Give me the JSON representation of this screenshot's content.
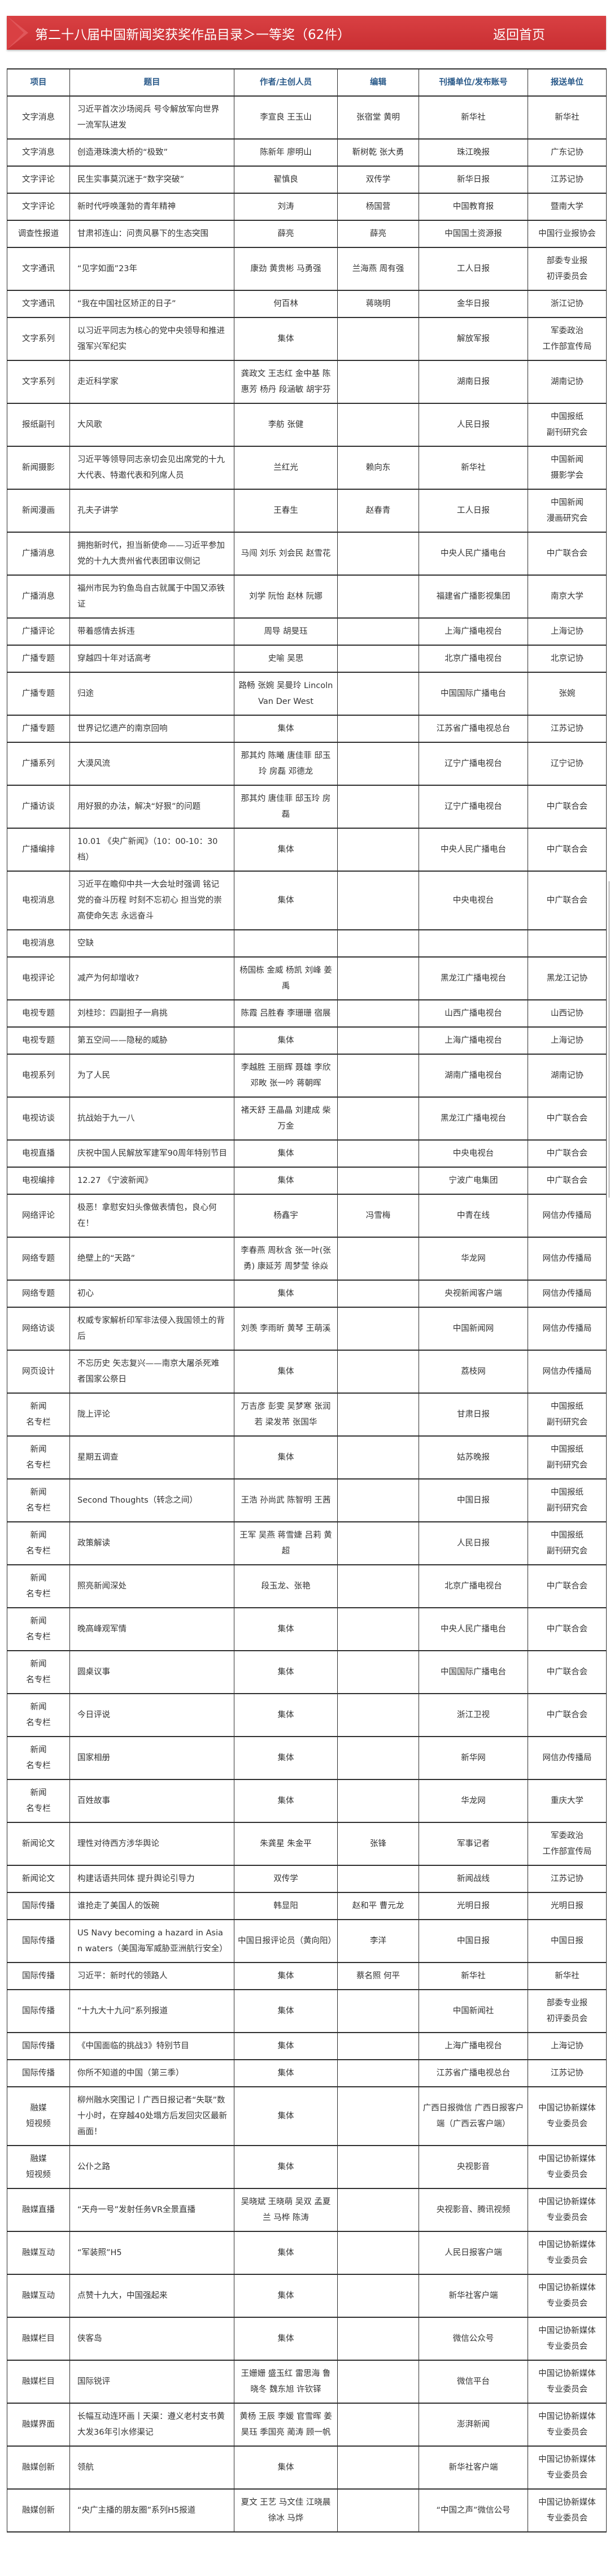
{
  "header": {
    "title": "第二十八届中国新闻奖获奖作品目录＞一等奖（62件）",
    "home_link": "返回首页",
    "accent": "#d33a3c"
  },
  "table": {
    "columns": [
      "项目",
      "题目",
      "作者/主创人员",
      "编辑",
      "刊播单位/发布账号",
      "报送单位"
    ],
    "rows": [
      [
        "文字消息",
        "习近平首次沙场阅兵 号令解放军向世界一流军队进发",
        "李宣良 王玉山",
        "张宿堂 黄明",
        "新华社",
        "新华社"
      ],
      [
        "文字消息",
        "创造港珠澳大桥的“极致”",
        "陈新年 廖明山",
        "靳树乾 张大勇",
        "珠江晚报",
        "广东记协"
      ],
      [
        "文字评论",
        "民生实事莫沉迷于“数字突破”",
        "翟慎良",
        "双传学",
        "新华日报",
        "江苏记协"
      ],
      [
        "文字评论",
        "新时代呼唤蓬勃的青年精神",
        "刘涛",
        "杨国营",
        "中国教育报",
        "暨南大学"
      ],
      [
        "调查性报道",
        "甘肃祁连山：问责风暴下的生态突围",
        "薛亮",
        "薛亮",
        "中国国土资源报",
        "中国行业报协会"
      ],
      [
        "文字通讯",
        "“见字如面”23年",
        "康劲 黄贵彬 马勇强",
        "兰海燕 周有强",
        "工人日报",
        "部委专业报\n初评委员会"
      ],
      [
        "文字通讯",
        "“我在中国社区矫正的日子”",
        "何百林",
        "蒋晓明",
        "金华日报",
        "浙江记协"
      ],
      [
        "文字系列",
        "以习近平同志为核心的党中央领导和推进强军兴军纪实",
        "集体",
        "",
        "解放军报",
        "军委政治\n工作部宣传局"
      ],
      [
        "文字系列",
        "走近科学家",
        "龚政文 王志红 金中基 陈惠芳 杨丹 段涵敏 胡宇芬",
        "",
        "湖南日报",
        "湖南记协"
      ],
      [
        "报纸副刊",
        "大风歌",
        "李舫 张健",
        "",
        "人民日报",
        "中国报纸\n副刊研究会"
      ],
      [
        "新闻摄影",
        "习近平等领导同志亲切会见出席党的十九大代表、特邀代表和列席人员",
        "兰红光",
        "赖向东",
        "新华社",
        "中国新闻\n摄影学会"
      ],
      [
        "新闻漫画",
        "孔夫子讲学",
        "王春生",
        "赵春青",
        "工人日报",
        "中国新闻\n漫画研究会"
      ],
      [
        "广播消息",
        "拥抱新时代，担当新使命——习近平参加党的十九大贵州省代表团审议侧记",
        "马闯 刘乐 刘会民 赵雪花",
        "",
        "中央人民广播电台",
        "中广联合会"
      ],
      [
        "广播消息",
        "福州市民为钓鱼岛自古就属于中国又添铁证",
        "刘学 阮怡 赵林 阮娜",
        "",
        "福建省广播影视集团",
        "南京大学"
      ],
      [
        "广播评论",
        "带着感情去拆违",
        "周导 胡旻珏",
        "",
        "上海广播电视台",
        "上海记协"
      ],
      [
        "广播专题",
        "穿越四十年对话高考",
        "史喻 吴思",
        "",
        "北京广播电视台",
        "北京记协"
      ],
      [
        "广播专题",
        "归途",
        "路畅 张婉 吴曼玲 Lincoln Van Der West",
        "",
        "中国国际广播电台",
        "张婉"
      ],
      [
        "广播专题",
        "世界记忆遗产的南京回响",
        "集体",
        "",
        "江苏省广播电视总台",
        "江苏记协"
      ],
      [
        "广播系列",
        "大漠风流",
        "那其灼 陈曦 唐佳菲 邸玉玲 房磊 邓德龙",
        "",
        "辽宁广播电视台",
        "辽宁记协"
      ],
      [
        "广播访谈",
        "用好狠的办法，解决“好狠”的问题",
        "那其灼 唐佳菲 邸玉玲 房磊",
        "",
        "辽宁广播电视台",
        "中广联合会"
      ],
      [
        "广播编排",
        "10.01 《央广新闻》（10：00-10：30档）",
        "集体",
        "",
        "中央人民广播电台",
        "中广联合会"
      ],
      [
        "电视消息",
        "习近平在瞻仰中共一大会址时强调 铭记党的奋斗历程 时刻不忘初心 担当党的崇高使命矢志 永远奋斗",
        "集体",
        "",
        "中央电视台",
        "中广联合会"
      ],
      [
        "电视消息",
        "空缺",
        "",
        "",
        "",
        ""
      ],
      [
        "电视评论",
        "减产为何却增收?",
        "杨国栋 金威 杨凯 刘峰 姜禹",
        "",
        "黑龙江广播电视台",
        "黑龙江记协"
      ],
      [
        "电视专题",
        "刘桂珍：四副担子一肩挑",
        "陈霞 吕胜春 李珊珊 宿展",
        "",
        "山西广播电视台",
        "山西记协"
      ],
      [
        "电视专题",
        "第五空间——隐秘的威胁",
        "集体",
        "",
        "上海广播电视台",
        "上海记协"
      ],
      [
        "电视系列",
        "为了人民",
        "李越胜 王丽辉 聂雄 李欣 邓畋 张一吟 蒋朝晖",
        "",
        "湖南广播电视台",
        "湖南记协"
      ],
      [
        "电视访谈",
        "抗战始于九一八",
        "褚天舒 王晶晶 刘建成 柴万金",
        "",
        "黑龙江广播电视台",
        "中广联合会"
      ],
      [
        "电视直播",
        "庆祝中国人民解放军建军90周年特别节目",
        "集体",
        "",
        "中央电视台",
        "中广联合会"
      ],
      [
        "电视编排",
        "12.27 《宁波新闻》",
        "集体",
        "",
        "宁波广电集团",
        "中广联合会"
      ],
      [
        "网络评论",
        "极恶！拿慰安妇头像做表情包，良心何在！",
        "杨鑫宇",
        "冯雪梅",
        "中青在线",
        "网信办传播局"
      ],
      [
        "网络专题",
        "绝壁上的“天路”",
        "李春燕 周秋含 张一叶(张勇) 康延芳 周梦莹 徐焱",
        "",
        "华龙网",
        "网信办传播局"
      ],
      [
        "网络专题",
        "初心",
        "集体",
        "",
        "央视新闻客户端",
        "网信办传播局"
      ],
      [
        "网络访谈",
        "权威专家解析印军非法侵入我国领土的背后",
        "刘羡 李雨昕 黄琴 王萌溪",
        "",
        "中国新闻网",
        "网信办传播局"
      ],
      [
        "网页设计",
        "不忘历史 矢志复兴——南京大屠杀死难者国家公祭日",
        "集体",
        "",
        "荔枝网",
        "网信办传播局"
      ],
      [
        "新闻\n名专栏",
        "陇上评论",
        "万吉彦 彭雯 吴梦寒 张润若 梁发芾 张国华",
        "",
        "甘肃日报",
        "中国报纸\n副刊研究会"
      ],
      [
        "新闻\n名专栏",
        "星期五调查",
        "集体",
        "",
        "姑苏晚报",
        "中国报纸\n副刊研究会"
      ],
      [
        "新闻\n名专栏",
        "Second Thoughts（转念之间）",
        "王浩 孙尚武 陈智明 王茜",
        "",
        "中国日报",
        "中国报纸\n副刊研究会"
      ],
      [
        "新闻\n名专栏",
        "政策解读",
        "王军 吴燕 蒋雪婕 吕莉 黄超",
        "",
        "人民日报",
        "中国报纸\n副刊研究会"
      ],
      [
        "新闻\n名专栏",
        "照亮新闻深处",
        "段玉龙、张艳",
        "",
        "北京广播电视台",
        "中广联合会"
      ],
      [
        "新闻\n名专栏",
        "晚高峰观军情",
        "集体",
        "",
        "中央人民广播电台",
        "中广联合会"
      ],
      [
        "新闻\n名专栏",
        "圆桌议事",
        "集体",
        "",
        "中国国际广播电台",
        "中广联合会"
      ],
      [
        "新闻\n名专栏",
        "今日评说",
        "集体",
        "",
        "浙江卫视",
        "中广联合会"
      ],
      [
        "新闻\n名专栏",
        "国家相册",
        "集体",
        "",
        "新华网",
        "网信办传播局"
      ],
      [
        "新闻\n名专栏",
        "百姓故事",
        "集体",
        "",
        "华龙网",
        "重庆大学"
      ],
      [
        "新闻论文",
        "理性对待西方涉华舆论",
        "朱龚星 朱金平",
        "张锋",
        "军事记者",
        "军委政治\n工作部宣传局"
      ],
      [
        "新闻论文",
        "构建话语共同体 提升舆论引导力",
        "双传学",
        "",
        "新闻战线",
        "江苏记协"
      ],
      [
        "国际传播",
        "谁抢走了美国人的饭碗",
        "韩显阳",
        "赵和平 曹元龙",
        "光明日报",
        "光明日报"
      ],
      [
        "国际传播",
        "US Navy becoming a hazard in Asian waters（美国海军威胁亚洲航行安全）",
        "中国日报评论员（黄向阳）",
        "李洋",
        "中国日报",
        "中国日报"
      ],
      [
        "国际传播",
        "习近平：新时代的领路人",
        "集体",
        "蔡名照 何平",
        "新华社",
        "新华社"
      ],
      [
        "国际传播",
        "“十九大十九问”系列报道",
        "集体",
        "",
        "中国新闻社",
        "部委专业报\n初评委员会"
      ],
      [
        "国际传播",
        "《中国面临的挑战3》特别节目",
        "集体",
        "",
        "上海广播电视台",
        "上海记协"
      ],
      [
        "国际传播",
        "你所不知道的中国（第三季）",
        "集体",
        "",
        "江苏省广播电视总台",
        "江苏记协"
      ],
      [
        "融媒\n短视频",
        "柳州融水突围记丨广西日报记者“失联”数十小时，在穿越40处塌方后发回灾区最新画面！",
        "集体",
        "",
        "广西日报微信 广西日报客户端（广西云客户端）",
        "中国记协新媒体\n专业委员会"
      ],
      [
        "融媒\n短视频",
        "公仆之路",
        "集体",
        "",
        "央视影音",
        "中国记协新媒体\n专业委员会"
      ],
      [
        "融媒直播",
        "“天舟一号”发射任务VR全景直播",
        "吴晓斌 王晓萌 吴双 孟夏兰 马桦 陈涛",
        "",
        "央视影音、腾讯视频",
        "中国记协新媒体\n专业委员会"
      ],
      [
        "融媒互动",
        "“军装照”H5",
        "集体",
        "",
        "人民日报客户端",
        "中国记协新媒体\n专业委员会"
      ],
      [
        "融媒互动",
        "点赞十九大，中国强起来",
        "集体",
        "",
        "新华社客户端",
        "中国记协新媒体\n专业委员会"
      ],
      [
        "融媒栏目",
        "侠客岛",
        "集体",
        "",
        "微信公众号",
        "中国记协新媒体\n专业委员会"
      ],
      [
        "融媒栏目",
        "国际锐评",
        "王姗姗 盛玉红 雷思海 鲁晓冬 魏东旭 许钦铎",
        "",
        "微信平台",
        "中国记协新媒体\n专业委员会"
      ],
      [
        "融媒界面",
        "长幅互动连环画丨天渠：遵义老村支书黄大发36年引水修渠记",
        "黄杨 王辰 李媛 官雪晖 姜昊珏 季国亮 蔺涛 顾一帆",
        "",
        "澎湃新闻",
        "中国记协新媒体\n专业委员会"
      ],
      [
        "融媒创新",
        "领航",
        "集体",
        "",
        "新华社客户端",
        "中国记协新媒体\n专业委员会"
      ],
      [
        "融媒创新",
        "“央广主播的朋友圈”系列H5报道",
        "夏文 王艺 马文佳 江晓晨 徐冰 马烨",
        "",
        "“中国之声”微信公号",
        "中国记协新媒体\n专业委员会"
      ]
    ]
  }
}
